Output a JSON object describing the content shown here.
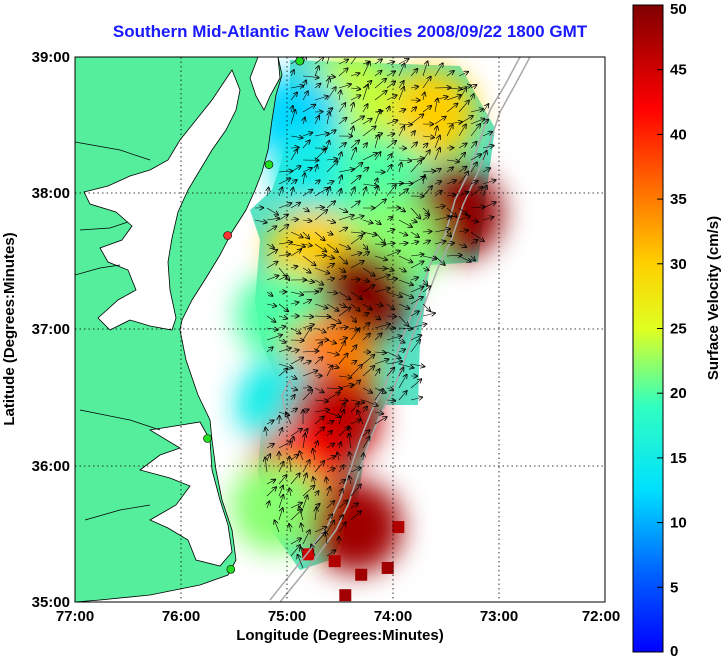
{
  "title": "Southern Mid-Atlantic Raw Velocities 2008/09/22 1800 GMT",
  "map": {
    "x_axis": {
      "label": "Longitude (Degrees:Minutes)",
      "ticks": [
        "77:00",
        "76:00",
        "75:00",
        "74:00",
        "73:00",
        "72:00"
      ]
    },
    "y_axis": {
      "label": "Latitude (Degrees:Minutes)",
      "ticks": [
        "39:00",
        "38:00",
        "37:00",
        "36:00",
        "35:00"
      ]
    },
    "extent": {
      "lon_west": -77.0,
      "lon_east": -72.0,
      "lat_south": 35.0,
      "lat_north": 39.0
    },
    "grid": "dotted",
    "colors": {
      "land": "#55ee9c",
      "water": "#ffffff",
      "coastline": "#000000",
      "bathymetry": "#a9a9a9"
    },
    "stations": [
      {
        "lon": -74.88,
        "lat": 38.97,
        "color": "#22dd22"
      },
      {
        "lon": -75.17,
        "lat": 38.21,
        "color": "#22dd22"
      },
      {
        "lon": -75.56,
        "lat": 37.69,
        "color": "#ff3333"
      },
      {
        "lon": -75.75,
        "lat": 36.2,
        "color": "#22dd22"
      },
      {
        "lon": -75.53,
        "lat": 35.24,
        "color": "#22dd22"
      }
    ],
    "velocity_regions": [
      {
        "lon": -73.65,
        "lat": 38.58,
        "speed": 30
      },
      {
        "lon": -74.4,
        "lat": 38.7,
        "speed": 24
      },
      {
        "lon": -74.9,
        "lat": 38.55,
        "speed": 12
      },
      {
        "lon": -74.7,
        "lat": 38.15,
        "speed": 15
      },
      {
        "lon": -74.1,
        "lat": 38.1,
        "speed": 20
      },
      {
        "lon": -73.4,
        "lat": 37.85,
        "speed": 49
      },
      {
        "lon": -74.0,
        "lat": 37.65,
        "speed": 22
      },
      {
        "lon": -74.75,
        "lat": 37.55,
        "speed": 30
      },
      {
        "lon": -74.3,
        "lat": 37.25,
        "speed": 50
      },
      {
        "lon": -75.05,
        "lat": 37.1,
        "speed": 20
      },
      {
        "lon": -74.6,
        "lat": 36.75,
        "speed": 35
      },
      {
        "lon": -75.05,
        "lat": 36.45,
        "speed": 15
      },
      {
        "lon": -74.55,
        "lat": 36.35,
        "speed": 46
      },
      {
        "lon": -74.9,
        "lat": 35.95,
        "speed": 42
      },
      {
        "lon": -75.1,
        "lat": 35.7,
        "speed": 22
      },
      {
        "lon": -74.35,
        "lat": 35.55,
        "speed": 48
      }
    ],
    "coastal_grid_cells": [
      {
        "lon": -74.8,
        "lat": 35.35,
        "speed": 45
      },
      {
        "lon": -74.55,
        "lat": 35.3,
        "speed": 47
      },
      {
        "lon": -74.3,
        "lat": 35.2,
        "speed": 48
      },
      {
        "lon": -74.05,
        "lat": 35.25,
        "speed": 48
      },
      {
        "lon": -74.45,
        "lat": 35.05,
        "speed": 48
      },
      {
        "lon": -73.95,
        "lat": 35.55,
        "speed": 47
      }
    ]
  },
  "colorbar": {
    "label": "Surface Velocity (cm/s)",
    "min": 0,
    "max": 50,
    "ticks": [
      "0",
      "5",
      "10",
      "15",
      "20",
      "25",
      "30",
      "35",
      "40",
      "45",
      "50"
    ],
    "colormap": [
      "#0000ff",
      "#00ffff",
      "#ffff00",
      "#ff0000",
      "#800000"
    ]
  }
}
